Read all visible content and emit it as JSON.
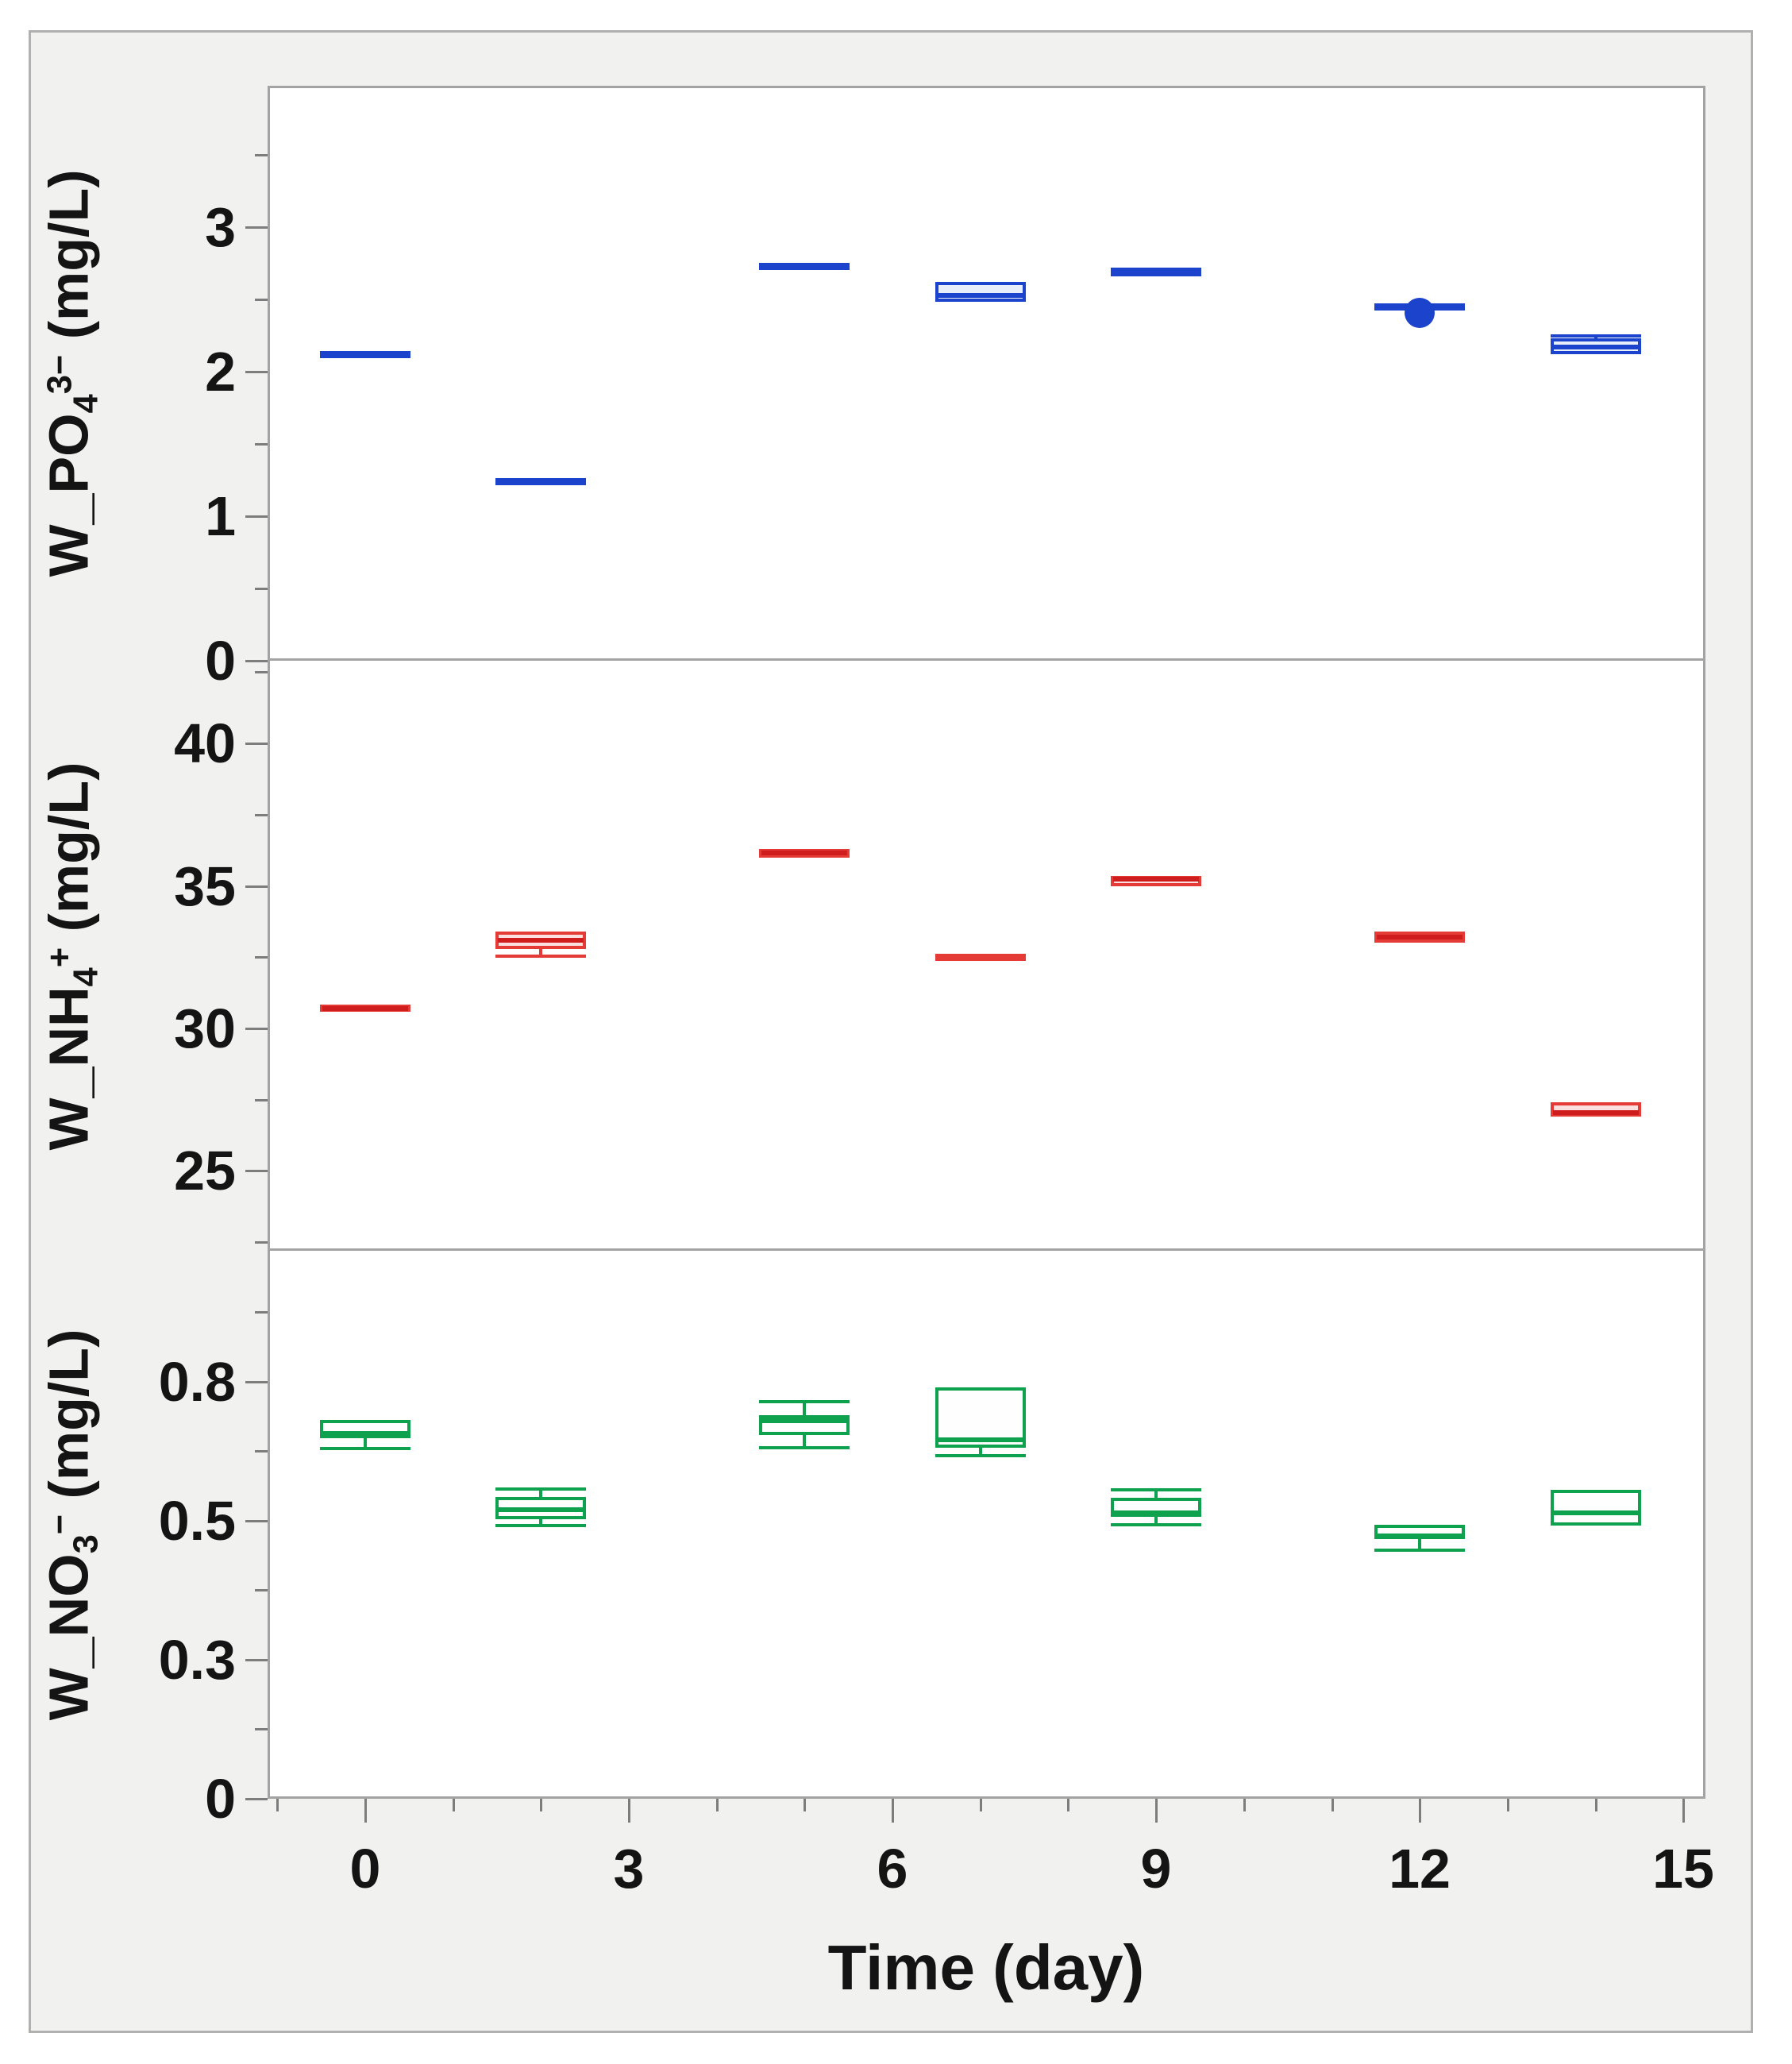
{
  "figure": {
    "background": "#f1f1ef",
    "panel_background": "#ffffff",
    "frame_color": "#a3a3a3",
    "tick_color": "#7d7d7d",
    "text_color": "#141414"
  },
  "xaxis": {
    "title": "Time (day)",
    "min": -1.11,
    "max": 15.25,
    "major_ticks": [
      {
        "v": 0,
        "label": "0"
      },
      {
        "v": 3,
        "label": "3"
      },
      {
        "v": 6,
        "label": "6"
      },
      {
        "v": 9,
        "label": "9"
      },
      {
        "v": 12,
        "label": "12"
      },
      {
        "v": 15,
        "label": "15"
      }
    ],
    "minor_ticks": [
      -1,
      1,
      2,
      4,
      5,
      7,
      8,
      10,
      11,
      13,
      14
    ]
  },
  "chart_data": [
    {
      "type": "box",
      "name": "W_PO4",
      "ylabel_text": "W_PO4 3- (mg/L)",
      "ylabel_parts": [
        [
          "t",
          "W_PO"
        ],
        [
          "sub",
          "4"
        ],
        [
          "sup",
          "3−"
        ],
        [
          "t",
          " (mg/L)"
        ]
      ],
      "color": "#1b43cb",
      "fill": "#e9eefb",
      "median_color": "#1b43cb",
      "ylim": [
        0,
        3.98
      ],
      "yticks": [
        {
          "v": 0,
          "label": "0"
        },
        {
          "v": 0.5
        },
        {
          "v": 1,
          "label": "1"
        },
        {
          "v": 1.5
        },
        {
          "v": 2,
          "label": "2"
        },
        {
          "v": 2.5
        },
        {
          "v": 3,
          "label": "3"
        },
        {
          "v": 3.5
        }
      ],
      "points": [
        {
          "day": 0,
          "type": "line",
          "value": 2.12
        },
        {
          "day": 2,
          "type": "line",
          "value": 1.24
        },
        {
          "day": 5,
          "type": "line",
          "value": 2.73
        },
        {
          "day": 7,
          "type": "box",
          "q1": 2.48,
          "median": 2.53,
          "q3": 2.62
        },
        {
          "day": 9,
          "type": "box",
          "q1": 2.66,
          "median": 2.69,
          "q3": 2.72
        },
        {
          "day": 12,
          "type": "line",
          "value": 2.45,
          "dot": 2.41
        },
        {
          "day": 14,
          "type": "box",
          "q1": 2.12,
          "median": 2.17,
          "q3": 2.23,
          "high": 2.25
        }
      ]
    },
    {
      "type": "box",
      "name": "W_NH4",
      "ylabel_text": "W_NH4 + (mg/L)",
      "ylabel_parts": [
        [
          "t",
          "W_NH"
        ],
        [
          "sub",
          "4"
        ],
        [
          "sup",
          "+"
        ],
        [
          "t",
          " (mg/L)"
        ]
      ],
      "color": "#e43b36",
      "fill": "#fbdede",
      "median_color": "#cf1c1c",
      "ylim": [
        22.2,
        42.9
      ],
      "yticks": [
        {
          "v": 22.5
        },
        {
          "v": 25,
          "label": "25"
        },
        {
          "v": 27.5
        },
        {
          "v": 30,
          "label": "30"
        },
        {
          "v": 32.5
        },
        {
          "v": 35,
          "label": "35"
        },
        {
          "v": 37.5
        },
        {
          "v": 40,
          "label": "40"
        },
        {
          "v": 42.5
        }
      ],
      "points": [
        {
          "day": 0,
          "type": "box",
          "q1": 30.6,
          "median": 30.7,
          "q3": 30.85
        },
        {
          "day": 2,
          "type": "box",
          "q1": 32.8,
          "median": 33.1,
          "q3": 33.4,
          "low": 32.55
        },
        {
          "day": 5,
          "type": "box",
          "q1": 36.0,
          "median": 36.15,
          "q3": 36.3
        },
        {
          "day": 7,
          "type": "line",
          "value": 32.5
        },
        {
          "day": 9,
          "type": "box",
          "q1": 35.0,
          "median": 35.25,
          "q3": 35.35
        },
        {
          "day": 12,
          "type": "box",
          "q1": 33.0,
          "median": 33.2,
          "q3": 33.4
        },
        {
          "day": 14,
          "type": "box",
          "q1": 26.9,
          "median": 27.05,
          "q3": 27.4
        }
      ]
    },
    {
      "type": "box",
      "name": "W_NO3",
      "ylabel_text": "W_NO3 - (mg/L)",
      "ylabel_parts": [
        [
          "t",
          "W_NO"
        ],
        [
          "sub",
          "3"
        ],
        [
          "sup",
          "−"
        ],
        [
          "t",
          " (mg/L)"
        ]
      ],
      "color": "#0ea14e",
      "fill": "#fdfefd",
      "median_color": "#0ea14e",
      "ylim": [
        0,
        0.985
      ],
      "yticks": [
        {
          "v": 0,
          "label": "0"
        },
        {
          "v": 0.125
        },
        {
          "v": 0.25,
          "label": "0.3"
        },
        {
          "v": 0.375
        },
        {
          "v": 0.5,
          "label": "0.5"
        },
        {
          "v": 0.625
        },
        {
          "v": 0.75,
          "label": "0.8"
        },
        {
          "v": 0.875
        }
      ],
      "points": [
        {
          "day": 0,
          "type": "box",
          "q1": 0.648,
          "median": 0.657,
          "q3": 0.681,
          "low": 0.63
        },
        {
          "day": 2,
          "type": "box",
          "q1": 0.503,
          "median": 0.52,
          "q3": 0.543,
          "low": 0.491,
          "high": 0.557
        },
        {
          "day": 5,
          "type": "box",
          "q1": 0.655,
          "median": 0.68,
          "q3": 0.69,
          "low": 0.631,
          "high": 0.714
        },
        {
          "day": 7,
          "type": "box",
          "q1": 0.631,
          "median": 0.645,
          "q3": 0.74,
          "low": 0.617
        },
        {
          "day": 9,
          "type": "box",
          "q1": 0.507,
          "median": 0.514,
          "q3": 0.541,
          "low": 0.493,
          "high": 0.556
        },
        {
          "day": 12,
          "type": "box",
          "q1": 0.467,
          "median": 0.472,
          "q3": 0.493,
          "low": 0.447
        },
        {
          "day": 14,
          "type": "box",
          "q1": 0.491,
          "median": 0.514,
          "q3": 0.555
        }
      ]
    }
  ]
}
